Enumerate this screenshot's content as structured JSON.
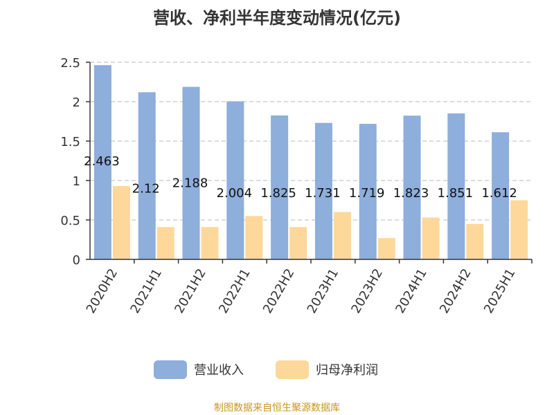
{
  "chart_data": {
    "type": "bar",
    "title": "营收、净利半年度变动情况(亿元)",
    "categories": [
      "2020H2",
      "2021H1",
      "2021H2",
      "2022H1",
      "2022H2",
      "2023H1",
      "2023H2",
      "2024H1",
      "2024H2",
      "2025H1"
    ],
    "series": [
      {
        "name": "营业收入",
        "color": "#8eaedb",
        "values": [
          2.463,
          2.12,
          2.188,
          2.004,
          1.825,
          1.731,
          1.719,
          1.823,
          1.851,
          1.612
        ],
        "data_labels": [
          "2.463",
          "2.12",
          "2.188",
          "2.004",
          "1.825",
          "1.731",
          "1.719",
          "1.823",
          "1.851",
          "1.612"
        ]
      },
      {
        "name": "归母净利润",
        "color": "#fdd89a",
        "values": [
          0.93,
          0.41,
          0.41,
          0.55,
          0.41,
          0.6,
          0.27,
          0.53,
          0.45,
          0.75
        ]
      }
    ],
    "ylim": [
      0,
      2.5
    ],
    "yticks": [
      "0",
      "0.5",
      "1",
      "1.5",
      "2",
      "2.5"
    ],
    "grid": true,
    "legend_position": "bottom"
  },
  "source_text": "制图数据来自恒生聚源数据库"
}
